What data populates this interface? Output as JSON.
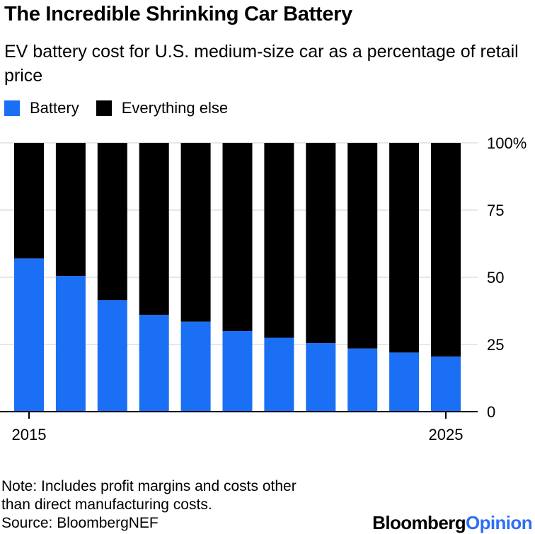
{
  "title": "The Incredible Shrinking Car Battery",
  "subtitle": "EV battery cost for U.S. medium-size car as a percentage of retail price",
  "legend": {
    "battery": "Battery",
    "everything_else": "Everything else"
  },
  "colors": {
    "battery": "#1a6ff5",
    "everything_else": "#000000",
    "opinion": "#2e6df6"
  },
  "chart_data": {
    "type": "bar",
    "stacked": true,
    "categories": [
      "2015",
      "2016",
      "2017",
      "2018",
      "2019",
      "2020",
      "2021",
      "2022",
      "2023",
      "2024",
      "2025"
    ],
    "x_tick_labels": [
      {
        "category_index": 0,
        "label": "2015"
      },
      {
        "category_index": 10,
        "label": "2025"
      }
    ],
    "series": [
      {
        "name": "Battery",
        "values": [
          57,
          50.5,
          41.5,
          36,
          33.5,
          30,
          27.5,
          25.5,
          23.5,
          22,
          20.5
        ]
      },
      {
        "name": "Everything else",
        "values": [
          43,
          49.5,
          58.5,
          64,
          66.5,
          70,
          72.5,
          74.5,
          76.5,
          78,
          79.5
        ]
      }
    ],
    "ylim": [
      0,
      100
    ],
    "y_ticks": [
      0,
      25,
      50,
      75,
      100
    ],
    "y_tick_labels": [
      "0",
      "25",
      "50",
      "75",
      "100%"
    ],
    "y_axis_position": "right",
    "grid": true,
    "legend_position": "top-left"
  },
  "footer": {
    "note_line1": "Note: Includes profit margins and costs other",
    "note_line2": "than direct manufacturing costs.",
    "source": "Source: BloombergNEF"
  },
  "brand": {
    "bloomberg": "Bloomberg",
    "opinion": "Opinion"
  }
}
